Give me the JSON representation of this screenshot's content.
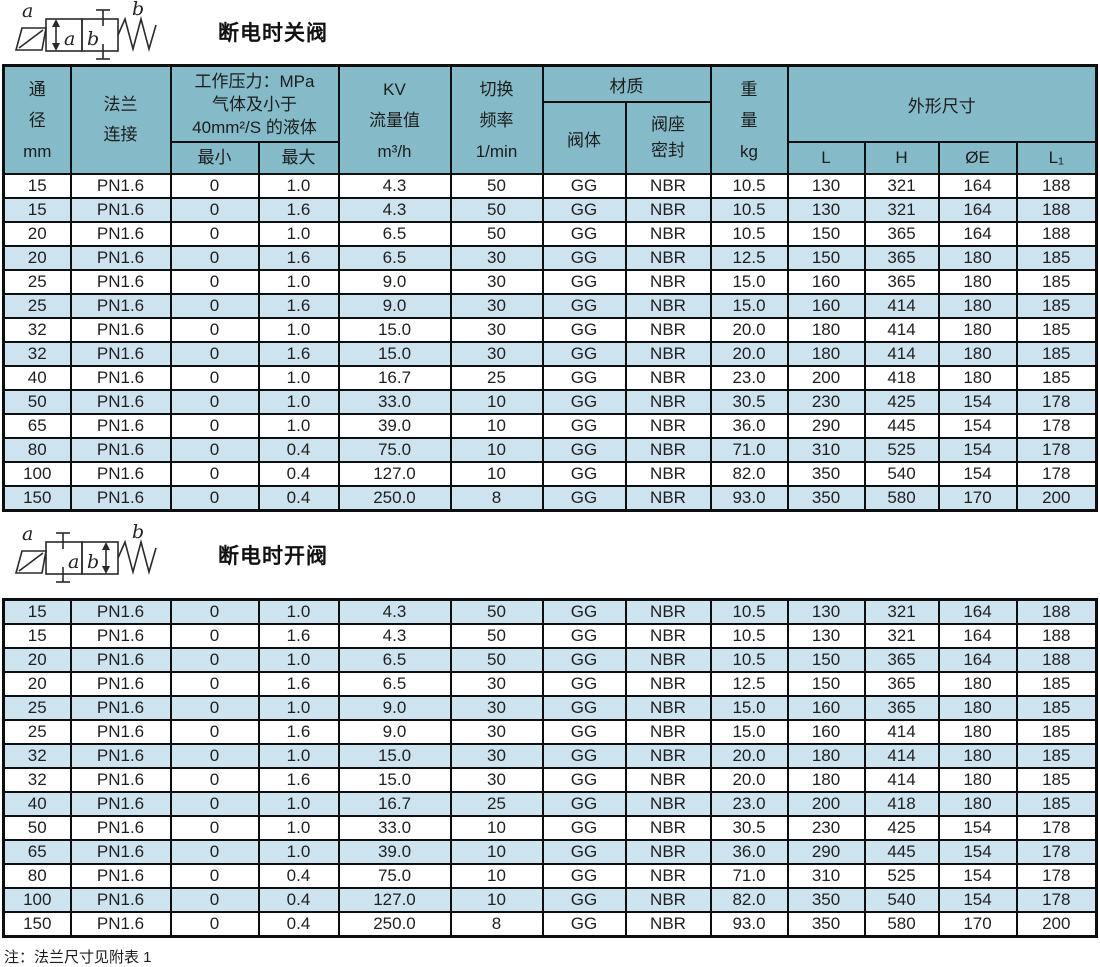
{
  "sections": [
    {
      "id": "close-on-power-off",
      "title": "断电时关阀",
      "symbol": {
        "label_left": "a",
        "label_right": "b",
        "box_a": "a",
        "box_b": "b",
        "arrow_in": "a"
      },
      "stripe_start": "white",
      "rows": [
        [
          "15",
          "PN1.6",
          "0",
          "1.0",
          "4.3",
          "50",
          "GG",
          "NBR",
          "10.5",
          "130",
          "321",
          "164",
          "188"
        ],
        [
          "15",
          "PN1.6",
          "0",
          "1.6",
          "4.3",
          "50",
          "GG",
          "NBR",
          "10.5",
          "130",
          "321",
          "164",
          "188"
        ],
        [
          "20",
          "PN1.6",
          "0",
          "1.0",
          "6.5",
          "50",
          "GG",
          "NBR",
          "10.5",
          "150",
          "365",
          "164",
          "188"
        ],
        [
          "20",
          "PN1.6",
          "0",
          "1.6",
          "6.5",
          "30",
          "GG",
          "NBR",
          "12.5",
          "150",
          "365",
          "180",
          "185"
        ],
        [
          "25",
          "PN1.6",
          "0",
          "1.0",
          "9.0",
          "30",
          "GG",
          "NBR",
          "15.0",
          "160",
          "365",
          "180",
          "185"
        ],
        [
          "25",
          "PN1.6",
          "0",
          "1.6",
          "9.0",
          "30",
          "GG",
          "NBR",
          "15.0",
          "160",
          "414",
          "180",
          "185"
        ],
        [
          "32",
          "PN1.6",
          "0",
          "1.0",
          "15.0",
          "30",
          "GG",
          "NBR",
          "20.0",
          "180",
          "414",
          "180",
          "185"
        ],
        [
          "32",
          "PN1.6",
          "0",
          "1.6",
          "15.0",
          "30",
          "GG",
          "NBR",
          "20.0",
          "180",
          "414",
          "180",
          "185"
        ],
        [
          "40",
          "PN1.6",
          "0",
          "1.0",
          "16.7",
          "25",
          "GG",
          "NBR",
          "23.0",
          "200",
          "418",
          "180",
          "185"
        ],
        [
          "50",
          "PN1.6",
          "0",
          "1.0",
          "33.0",
          "10",
          "GG",
          "NBR",
          "30.5",
          "230",
          "425",
          "154",
          "178"
        ],
        [
          "65",
          "PN1.6",
          "0",
          "1.0",
          "39.0",
          "10",
          "GG",
          "NBR",
          "36.0",
          "290",
          "445",
          "154",
          "178"
        ],
        [
          "80",
          "PN1.6",
          "0",
          "0.4",
          "75.0",
          "10",
          "GG",
          "NBR",
          "71.0",
          "310",
          "525",
          "154",
          "178"
        ],
        [
          "100",
          "PN1.6",
          "0",
          "0.4",
          "127.0",
          "10",
          "GG",
          "NBR",
          "82.0",
          "350",
          "540",
          "154",
          "178"
        ],
        [
          "150",
          "PN1.6",
          "0",
          "0.4",
          "250.0",
          "8",
          "GG",
          "NBR",
          "93.0",
          "350",
          "580",
          "170",
          "200"
        ]
      ]
    },
    {
      "id": "open-on-power-off",
      "title": "断电时开阀",
      "symbol": {
        "label_left": "a",
        "label_right": "b",
        "box_a": "a",
        "box_b": "b",
        "arrow_in": "b"
      },
      "stripe_start": "blue",
      "rows": [
        [
          "15",
          "PN1.6",
          "0",
          "1.0",
          "4.3",
          "50",
          "GG",
          "NBR",
          "10.5",
          "130",
          "321",
          "164",
          "188"
        ],
        [
          "15",
          "PN1.6",
          "0",
          "1.6",
          "4.3",
          "50",
          "GG",
          "NBR",
          "10.5",
          "130",
          "321",
          "164",
          "188"
        ],
        [
          "20",
          "PN1.6",
          "0",
          "1.0",
          "6.5",
          "50",
          "GG",
          "NBR",
          "10.5",
          "150",
          "365",
          "164",
          "188"
        ],
        [
          "20",
          "PN1.6",
          "0",
          "1.6",
          "6.5",
          "30",
          "GG",
          "NBR",
          "12.5",
          "150",
          "365",
          "180",
          "185"
        ],
        [
          "25",
          "PN1.6",
          "0",
          "1.0",
          "9.0",
          "30",
          "GG",
          "NBR",
          "15.0",
          "160",
          "365",
          "180",
          "185"
        ],
        [
          "25",
          "PN1.6",
          "0",
          "1.6",
          "9.0",
          "30",
          "GG",
          "NBR",
          "15.0",
          "160",
          "414",
          "180",
          "185"
        ],
        [
          "32",
          "PN1.6",
          "0",
          "1.0",
          "15.0",
          "30",
          "GG",
          "NBR",
          "20.0",
          "180",
          "414",
          "180",
          "185"
        ],
        [
          "32",
          "PN1.6",
          "0",
          "1.6",
          "15.0",
          "30",
          "GG",
          "NBR",
          "20.0",
          "180",
          "414",
          "180",
          "185"
        ],
        [
          "40",
          "PN1.6",
          "0",
          "1.0",
          "16.7",
          "25",
          "GG",
          "NBR",
          "23.0",
          "200",
          "418",
          "180",
          "185"
        ],
        [
          "50",
          "PN1.6",
          "0",
          "1.0",
          "33.0",
          "10",
          "GG",
          "NBR",
          "30.5",
          "230",
          "425",
          "154",
          "178"
        ],
        [
          "65",
          "PN1.6",
          "0",
          "1.0",
          "39.0",
          "10",
          "GG",
          "NBR",
          "36.0",
          "290",
          "445",
          "154",
          "178"
        ],
        [
          "80",
          "PN1.6",
          "0",
          "0.4",
          "75.0",
          "10",
          "GG",
          "NBR",
          "71.0",
          "310",
          "525",
          "154",
          "178"
        ],
        [
          "100",
          "PN1.6",
          "0",
          "0.4",
          "127.0",
          "10",
          "GG",
          "NBR",
          "82.0",
          "350",
          "540",
          "154",
          "178"
        ],
        [
          "150",
          "PN1.6",
          "0",
          "0.4",
          "250.0",
          "8",
          "GG",
          "NBR",
          "93.0",
          "350",
          "580",
          "170",
          "200"
        ]
      ]
    }
  ],
  "table_header": {
    "diameter_lines": [
      "通",
      "径",
      "mm"
    ],
    "flange_lines": [
      "法兰",
      "连接"
    ],
    "pressure_lines": [
      "工作压力：MPa",
      "气体及小于",
      "40mm²/S 的液体"
    ],
    "pressure_min": "最小",
    "pressure_max": "最大",
    "kv_lines": [
      "KV",
      "流量值",
      "m³/h"
    ],
    "freq_lines": [
      "切换",
      "频率",
      "1/min"
    ],
    "material": "材质",
    "material_body": "阀体",
    "material_seat_lines": [
      "阀座",
      "密封"
    ],
    "weight_lines": [
      "重",
      "量",
      "kg"
    ],
    "dimensions": "外形尺寸",
    "dim_cols": [
      "L",
      "H",
      "ØE",
      "L₁"
    ]
  },
  "note": "注：法兰尺寸见附表 1",
  "colors": {
    "header_bg": "#85bac8",
    "row_shaded_bg": "#cde3ef",
    "row_bg": "#ffffff",
    "border": "#0e0e0e",
    "text": "#1f1f1f"
  }
}
